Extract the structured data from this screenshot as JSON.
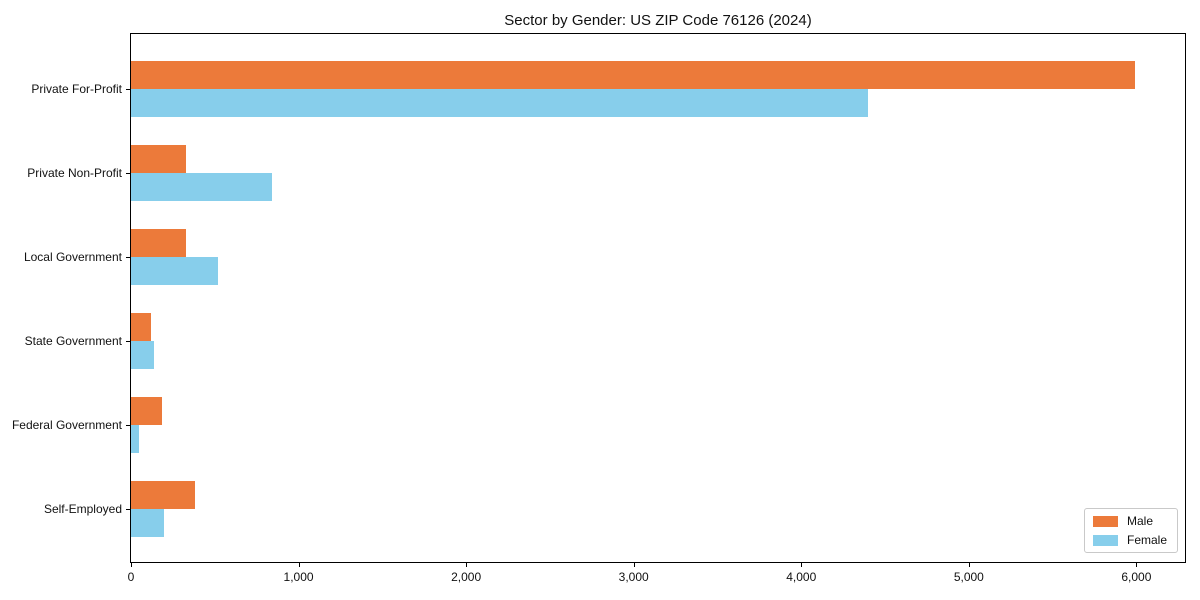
{
  "chart_data": {
    "type": "bar",
    "orientation": "horizontal",
    "title": "Sector by Gender: US ZIP Code 76126 (2024)",
    "categories": [
      "Private For-Profit",
      "Private Non-Profit",
      "Local Government",
      "State Government",
      "Federal Government",
      "Self-Employed"
    ],
    "series": [
      {
        "name": "Male",
        "color": "#EC7A3A",
        "values": [
          5990,
          330,
          330,
          120,
          185,
          380
        ]
      },
      {
        "name": "Female",
        "color": "#87CEEB",
        "values": [
          4400,
          840,
          520,
          135,
          45,
          195
        ]
      }
    ],
    "xlabel": "",
    "ylabel": "",
    "xlim": [
      0,
      6290
    ],
    "xticks": [
      0,
      1000,
      2000,
      3000,
      4000,
      5000,
      6000
    ],
    "xtick_labels": [
      "0",
      "1,000",
      "2,000",
      "3,000",
      "4,000",
      "5,000",
      "6,000"
    ],
    "grid": false,
    "legend": {
      "position": "lower right"
    }
  }
}
